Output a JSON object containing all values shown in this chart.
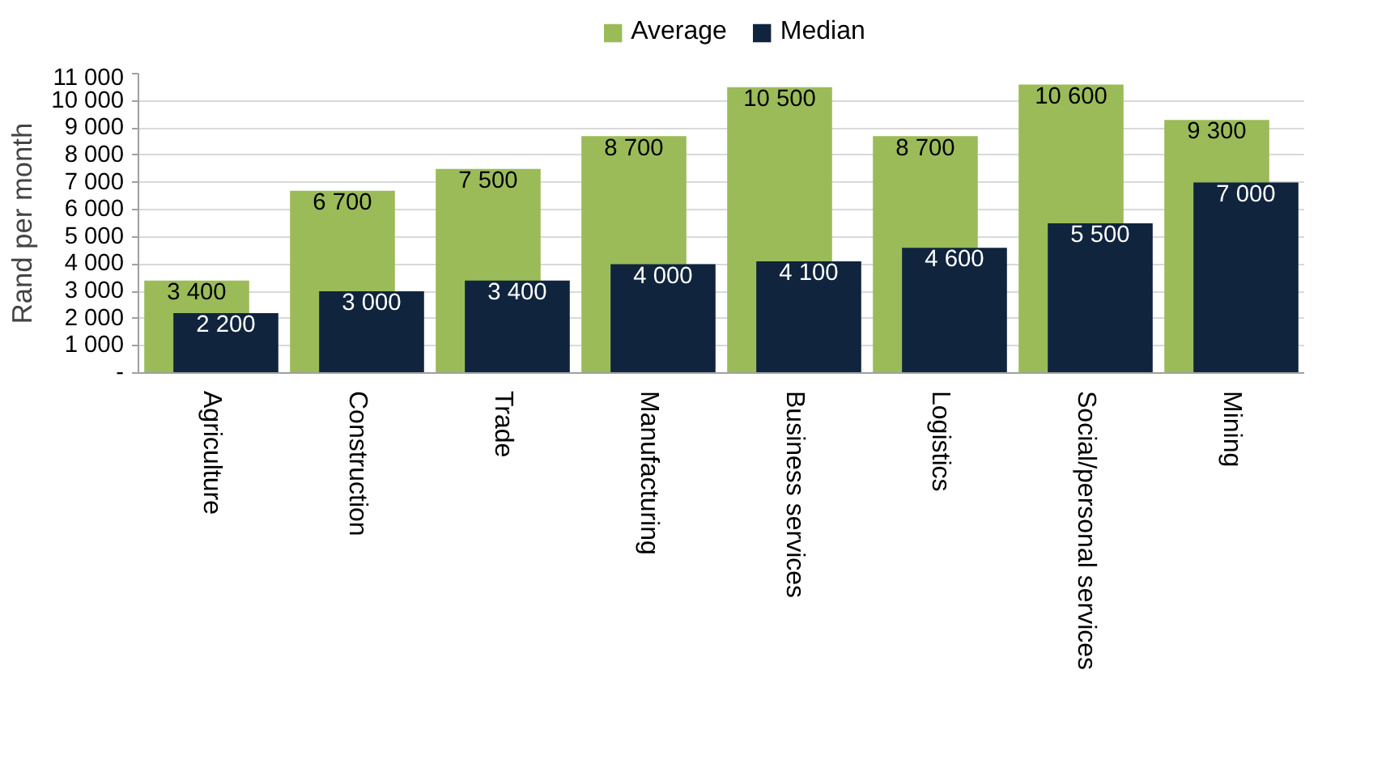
{
  "chart_data": {
    "type": "bar",
    "ylabel": "Rand per month",
    "categories": [
      "Agriculture",
      "Construction",
      "Trade",
      "Manufacturing",
      "Business services",
      "Logistics",
      "Social/personal services",
      "Mining"
    ],
    "series": [
      {
        "name": "Average",
        "color": "#9bbb59",
        "values": [
          3400,
          6700,
          7500,
          8700,
          10500,
          8700,
          10600,
          9300
        ],
        "value_labels": [
          "3 400",
          "6 700",
          "7 500",
          "8 700",
          "10 500",
          "8 700",
          "10 600",
          "9 300"
        ]
      },
      {
        "name": "Median",
        "color": "#10243e",
        "values": [
          2200,
          3000,
          3400,
          4000,
          4100,
          4600,
          5500,
          7000
        ],
        "value_labels": [
          "2 200",
          "3 000",
          "3 400",
          "4 000",
          "4 100",
          "4 600",
          "5 500",
          "7 000"
        ]
      }
    ],
    "ylim": [
      0,
      11000
    ],
    "yticks": [
      {
        "value": 0,
        "label": "-"
      },
      {
        "value": 1000,
        "label": "1 000"
      },
      {
        "value": 2000,
        "label": "2 000"
      },
      {
        "value": 3000,
        "label": "3 000"
      },
      {
        "value": 4000,
        "label": "4 000"
      },
      {
        "value": 5000,
        "label": "5 000"
      },
      {
        "value": 6000,
        "label": "6 000"
      },
      {
        "value": 7000,
        "label": "7 000"
      },
      {
        "value": 8000,
        "label": "8 000"
      },
      {
        "value": 9000,
        "label": "9 000"
      },
      {
        "value": 10000,
        "label": "10 000"
      },
      {
        "value": 11000,
        "label": "11 000"
      }
    ],
    "grid": "y",
    "legend": "top"
  }
}
